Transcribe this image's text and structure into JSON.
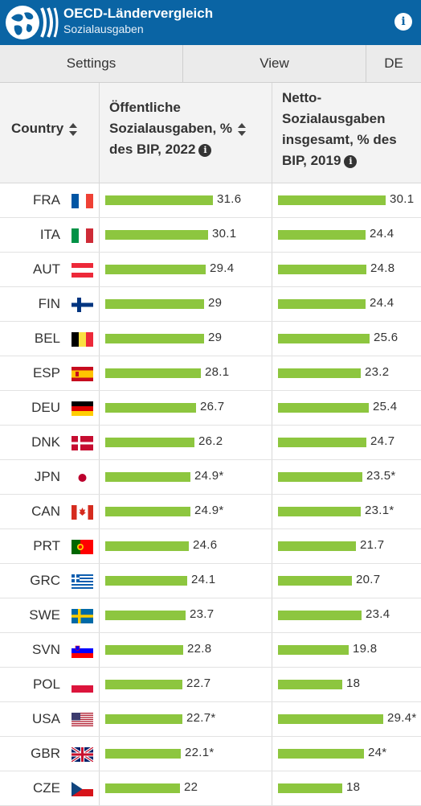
{
  "header": {
    "title": "OECD-Ländervergleich",
    "subtitle": "Sozialausgaben"
  },
  "toolbar": {
    "settings_label": "Settings",
    "view_label": "View",
    "lang_label": "DE"
  },
  "columns": {
    "country": "Country",
    "public": [
      "Öffentliche",
      "Sozialausgaben, %",
      "des BIP, 2022"
    ],
    "net": [
      "Netto-",
      "Sozialausgaben",
      "insgesamt, % des",
      "BIP, 2019"
    ]
  },
  "colors": {
    "brand": "#0a64a4",
    "bar": "#8dc63f"
  },
  "rows": [
    {
      "code": "FRA",
      "flag": "fr",
      "pub": "31.6",
      "net": "30.1"
    },
    {
      "code": "ITA",
      "flag": "it",
      "pub": "30.1",
      "net": "24.4"
    },
    {
      "code": "AUT",
      "flag": "at",
      "pub": "29.4",
      "net": "24.8"
    },
    {
      "code": "FIN",
      "flag": "fi",
      "pub": "29",
      "net": "24.4"
    },
    {
      "code": "BEL",
      "flag": "be",
      "pub": "29",
      "net": "25.6"
    },
    {
      "code": "ESP",
      "flag": "es",
      "pub": "28.1",
      "net": "23.2"
    },
    {
      "code": "DEU",
      "flag": "de",
      "pub": "26.7",
      "net": "25.4"
    },
    {
      "code": "DNK",
      "flag": "dk",
      "pub": "26.2",
      "net": "24.7"
    },
    {
      "code": "JPN",
      "flag": "jp",
      "pub": "24.9*",
      "net": "23.5*"
    },
    {
      "code": "CAN",
      "flag": "ca",
      "pub": "24.9*",
      "net": "23.1*"
    },
    {
      "code": "PRT",
      "flag": "pt",
      "pub": "24.6",
      "net": "21.7"
    },
    {
      "code": "GRC",
      "flag": "gr",
      "pub": "24.1",
      "net": "20.7"
    },
    {
      "code": "SWE",
      "flag": "se",
      "pub": "23.7",
      "net": "23.4"
    },
    {
      "code": "SVN",
      "flag": "si",
      "pub": "22.8",
      "net": "19.8"
    },
    {
      "code": "POL",
      "flag": "pl",
      "pub": "22.7",
      "net": "18"
    },
    {
      "code": "USA",
      "flag": "us",
      "pub": "22.7*",
      "net": "29.4*"
    },
    {
      "code": "GBR",
      "flag": "gb",
      "pub": "22.1*",
      "net": "24*"
    },
    {
      "code": "CZE",
      "flag": "cz",
      "pub": "22",
      "net": "18"
    }
  ]
}
